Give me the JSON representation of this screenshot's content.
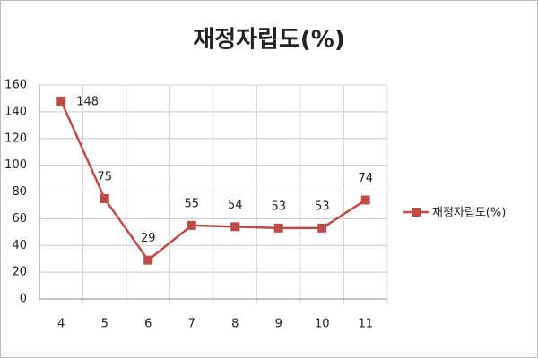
{
  "chart_data": {
    "type": "line",
    "title": "재정자립도(%)",
    "categories": [
      "4",
      "5",
      "6",
      "7",
      "8",
      "9",
      "10",
      "11"
    ],
    "series": [
      {
        "name": "재정자립도(%)",
        "color": "#be4b48",
        "values": [
          148,
          75,
          29,
          55,
          54,
          53,
          53,
          74
        ]
      }
    ],
    "ylim": [
      0,
      160
    ],
    "yticks": [
      0,
      20,
      40,
      60,
      80,
      100,
      120,
      140,
      160
    ],
    "grid": true,
    "legend": "right"
  }
}
